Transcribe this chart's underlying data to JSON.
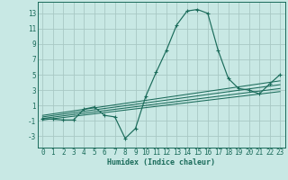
{
  "background_color": "#c8e8e4",
  "grid_color": "#a8c8c4",
  "line_color": "#1a6b5a",
  "xlabel": "Humidex (Indice chaleur)",
  "xlim": [
    -0.5,
    23.5
  ],
  "ylim": [
    -4.5,
    14.5
  ],
  "yticks": [
    -3,
    -1,
    1,
    3,
    5,
    7,
    9,
    11,
    13
  ],
  "xticks": [
    0,
    1,
    2,
    3,
    4,
    5,
    6,
    7,
    8,
    9,
    10,
    11,
    12,
    13,
    14,
    15,
    16,
    17,
    18,
    19,
    20,
    21,
    22,
    23
  ],
  "main_line_x": [
    0,
    1,
    2,
    3,
    4,
    5,
    6,
    7,
    8,
    9,
    10,
    11,
    12,
    13,
    14,
    15,
    16,
    17,
    18,
    19,
    20,
    21,
    22,
    23
  ],
  "main_line_y": [
    -0.7,
    -0.8,
    -0.9,
    -0.9,
    0.5,
    0.8,
    -0.3,
    -0.5,
    -3.3,
    -2.0,
    2.2,
    5.3,
    8.2,
    11.5,
    13.3,
    13.5,
    13.0,
    8.2,
    4.5,
    3.2,
    3.0,
    2.5,
    3.8,
    5.0
  ],
  "linear_lines": [
    {
      "x": [
        0,
        23
      ],
      "y": [
        -0.9,
        2.8
      ]
    },
    {
      "x": [
        0,
        23
      ],
      "y": [
        -0.7,
        3.2
      ]
    },
    {
      "x": [
        0,
        23
      ],
      "y": [
        -0.5,
        3.7
      ]
    },
    {
      "x": [
        0,
        23
      ],
      "y": [
        -0.3,
        4.2
      ]
    }
  ],
  "tick_fontsize": 5.5,
  "xlabel_fontsize": 6.0
}
